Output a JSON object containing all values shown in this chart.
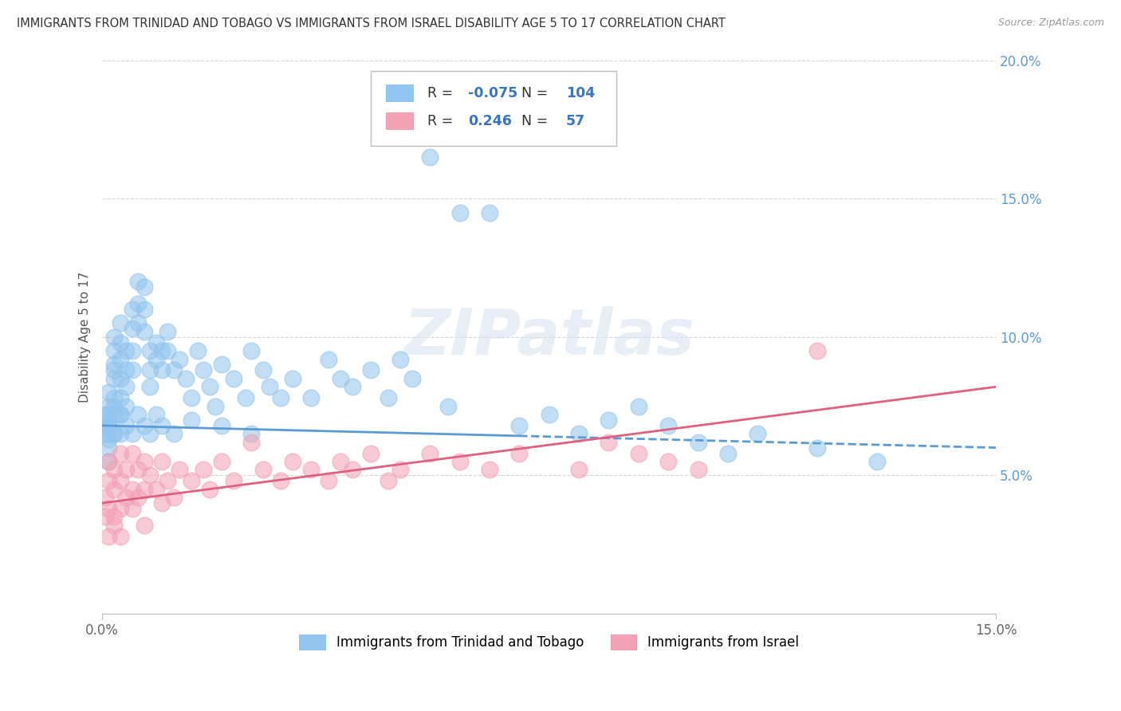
{
  "title": "IMMIGRANTS FROM TRINIDAD AND TOBAGO VS IMMIGRANTS FROM ISRAEL DISABILITY AGE 5 TO 17 CORRELATION CHART",
  "source": "Source: ZipAtlas.com",
  "ylabel": "Disability Age 5 to 17",
  "xlim": [
    0.0,
    0.15
  ],
  "ylim": [
    0.0,
    0.2
  ],
  "xticks": [
    0.0,
    0.15
  ],
  "xticklabels": [
    "0.0%",
    "15.0%"
  ],
  "yticks": [
    0.05,
    0.1,
    0.15,
    0.2
  ],
  "yticklabels": [
    "5.0%",
    "10.0%",
    "15.0%",
    "20.0%"
  ],
  "color_tt": "#91C4EE",
  "color_israel": "#F4A0B5",
  "color_tt_line": "#5B9BD5",
  "color_israel_line": "#E06080",
  "R_tt": -0.075,
  "N_tt": 104,
  "R_israel": 0.246,
  "N_israel": 57,
  "legend_label_tt": "Immigrants from Trinidad and Tobago",
  "legend_label_israel": "Immigrants from Israel",
  "watermark": "ZIPatlas",
  "tt_trend_x0": 0.0,
  "tt_trend_y0": 0.068,
  "tt_trend_x1": 0.15,
  "tt_trend_y1": 0.06,
  "israel_trend_x0": 0.0,
  "israel_trend_y0": 0.04,
  "israel_trend_x1": 0.15,
  "israel_trend_y1": 0.082,
  "tt_x": [
    0.0005,
    0.0005,
    0.0005,
    0.001,
    0.001,
    0.001,
    0.001,
    0.001,
    0.001,
    0.001,
    0.001,
    0.001,
    0.002,
    0.002,
    0.002,
    0.002,
    0.002,
    0.002,
    0.002,
    0.002,
    0.002,
    0.003,
    0.003,
    0.003,
    0.003,
    0.003,
    0.003,
    0.003,
    0.004,
    0.004,
    0.004,
    0.004,
    0.005,
    0.005,
    0.005,
    0.005,
    0.006,
    0.006,
    0.006,
    0.007,
    0.007,
    0.007,
    0.008,
    0.008,
    0.008,
    0.009,
    0.009,
    0.01,
    0.01,
    0.011,
    0.011,
    0.012,
    0.013,
    0.014,
    0.015,
    0.016,
    0.017,
    0.018,
    0.019,
    0.02,
    0.022,
    0.024,
    0.025,
    0.027,
    0.028,
    0.03,
    0.032,
    0.035,
    0.038,
    0.04,
    0.042,
    0.045,
    0.048,
    0.05,
    0.052,
    0.055,
    0.058,
    0.06,
    0.065,
    0.07,
    0.075,
    0.08,
    0.085,
    0.09,
    0.095,
    0.1,
    0.105,
    0.11,
    0.12,
    0.13,
    0.001,
    0.002,
    0.003,
    0.004,
    0.005,
    0.006,
    0.007,
    0.008,
    0.009,
    0.01,
    0.012,
    0.015,
    0.02,
    0.025
  ],
  "tt_y": [
    0.068,
    0.072,
    0.065,
    0.068,
    0.072,
    0.065,
    0.075,
    0.08,
    0.06,
    0.055,
    0.07,
    0.063,
    0.09,
    0.085,
    0.078,
    0.072,
    0.065,
    0.095,
    0.1,
    0.088,
    0.075,
    0.105,
    0.098,
    0.092,
    0.085,
    0.078,
    0.072,
    0.065,
    0.095,
    0.088,
    0.082,
    0.075,
    0.11,
    0.103,
    0.095,
    0.088,
    0.12,
    0.112,
    0.105,
    0.118,
    0.11,
    0.102,
    0.095,
    0.088,
    0.082,
    0.098,
    0.092,
    0.095,
    0.088,
    0.102,
    0.095,
    0.088,
    0.092,
    0.085,
    0.078,
    0.095,
    0.088,
    0.082,
    0.075,
    0.09,
    0.085,
    0.078,
    0.095,
    0.088,
    0.082,
    0.078,
    0.085,
    0.078,
    0.092,
    0.085,
    0.082,
    0.088,
    0.078,
    0.092,
    0.085,
    0.165,
    0.075,
    0.145,
    0.145,
    0.068,
    0.072,
    0.065,
    0.07,
    0.075,
    0.068,
    0.062,
    0.058,
    0.065,
    0.06,
    0.055,
    0.068,
    0.065,
    0.072,
    0.068,
    0.065,
    0.072,
    0.068,
    0.065,
    0.072,
    0.068,
    0.065,
    0.07,
    0.068,
    0.065
  ],
  "israel_x": [
    0.0005,
    0.0005,
    0.001,
    0.001,
    0.001,
    0.002,
    0.002,
    0.002,
    0.003,
    0.003,
    0.003,
    0.004,
    0.004,
    0.005,
    0.005,
    0.006,
    0.006,
    0.007,
    0.007,
    0.008,
    0.009,
    0.01,
    0.011,
    0.012,
    0.013,
    0.015,
    0.017,
    0.018,
    0.02,
    0.022,
    0.025,
    0.027,
    0.03,
    0.032,
    0.035,
    0.038,
    0.04,
    0.042,
    0.045,
    0.048,
    0.05,
    0.055,
    0.06,
    0.065,
    0.07,
    0.08,
    0.085,
    0.09,
    0.095,
    0.1,
    0.001,
    0.002,
    0.003,
    0.005,
    0.007,
    0.01,
    0.12
  ],
  "israel_y": [
    0.042,
    0.035,
    0.055,
    0.048,
    0.038,
    0.052,
    0.045,
    0.035,
    0.058,
    0.048,
    0.038,
    0.052,
    0.042,
    0.058,
    0.045,
    0.052,
    0.042,
    0.055,
    0.045,
    0.05,
    0.045,
    0.055,
    0.048,
    0.042,
    0.052,
    0.048,
    0.052,
    0.045,
    0.055,
    0.048,
    0.062,
    0.052,
    0.048,
    0.055,
    0.052,
    0.048,
    0.055,
    0.052,
    0.058,
    0.048,
    0.052,
    0.058,
    0.055,
    0.052,
    0.058,
    0.052,
    0.062,
    0.058,
    0.055,
    0.052,
    0.028,
    0.032,
    0.028,
    0.038,
    0.032,
    0.04,
    0.095
  ]
}
